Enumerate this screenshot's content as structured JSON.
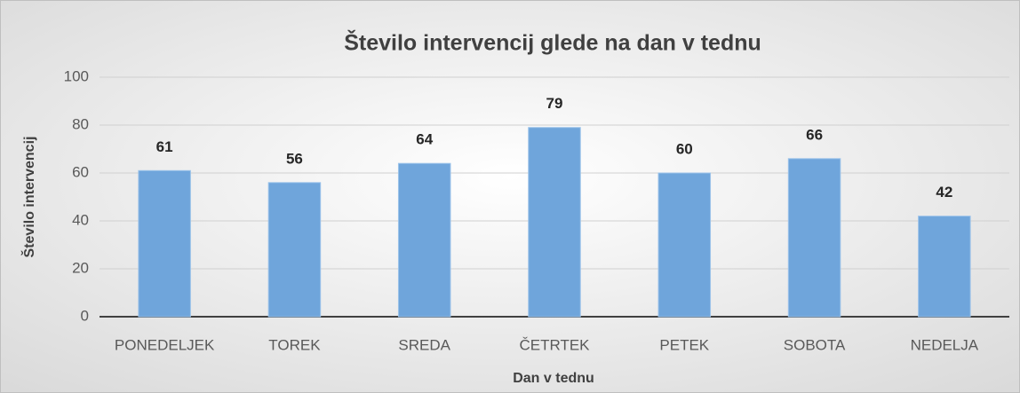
{
  "chart_data": {
    "type": "bar",
    "title": "Število intervencij glede na dan v tednu",
    "x_label": "Dan v tednu",
    "y_label": "Število intervencij",
    "categories": [
      "PONEDELJEK",
      "TOREK",
      "SREDA",
      "ČETRTEK",
      "PETEK",
      "SOBOTA",
      "NEDELJA"
    ],
    "values": [
      61,
      56,
      64,
      79,
      60,
      66,
      42
    ],
    "color": "#6fa5db",
    "ylim": [
      0,
      100
    ],
    "yticks": [
      0,
      20,
      40,
      60,
      80,
      100
    ],
    "grid": true
  }
}
